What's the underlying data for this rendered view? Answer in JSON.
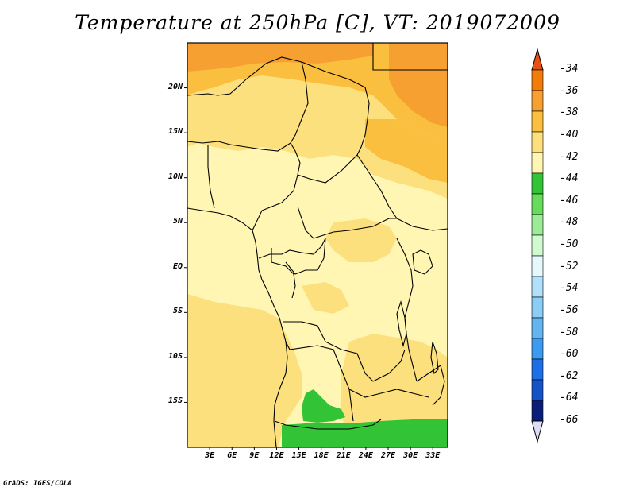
{
  "title": "Temperature at 250hPa [C], VT: 2019072009",
  "credit": "GrADS: IGES/COLA",
  "map": {
    "lat_labels": [
      "20N",
      "15N",
      "10N",
      "5N",
      "EQ",
      "5S",
      "10S",
      "15S"
    ],
    "lon_labels": [
      "3E",
      "6E",
      "9E",
      "12E",
      "15E",
      "18E",
      "21E",
      "24E",
      "27E",
      "30E",
      "33E"
    ],
    "lat_range": [
      -20,
      25
    ],
    "lon_range": [
      0,
      35
    ]
  },
  "colorbar": {
    "labels": [
      "-34",
      "-36",
      "-38",
      "-40",
      "-42",
      "-44",
      "-46",
      "-48",
      "-50",
      "-52",
      "-54",
      "-56",
      "-58",
      "-60",
      "-62",
      "-64",
      "-66"
    ],
    "colors": [
      "#e84f16",
      "#f27c0a",
      "#f5a030",
      "#fbbf40",
      "#fbe07d",
      "#fff6b4",
      "#33c336",
      "#66db5c",
      "#9ceb96",
      "#d2fad0",
      "#e6f8fc",
      "#b2e0fa",
      "#8ccdf5",
      "#64b4f0",
      "#3c9af0",
      "#1e6ee6",
      "#1452c8",
      "#0a1e78",
      "#dcdcf5"
    ]
  }
}
